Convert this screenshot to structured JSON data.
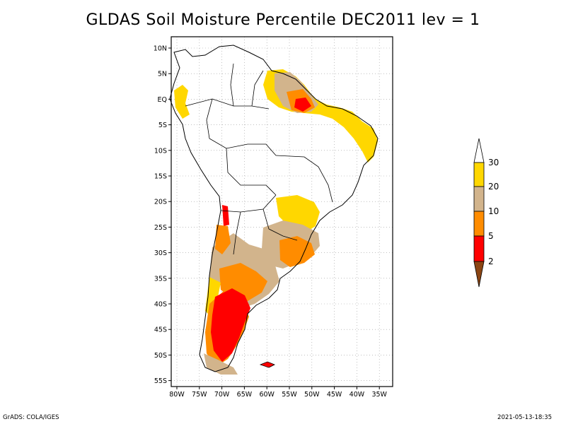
{
  "title": "GLDAS Soil Moisture Percentile DEC2011 lev = 1",
  "footer": {
    "left": "GrADS: COLA/IGES",
    "right": "2021-05-13-18:35"
  },
  "axes": {
    "lat_ticks": [
      "10N",
      "5N",
      "EQ",
      "5S",
      "10S",
      "15S",
      "20S",
      "25S",
      "30S",
      "35S",
      "40S",
      "45S",
      "50S",
      "55S"
    ],
    "lon_ticks": [
      "80W",
      "75W",
      "70W",
      "65W",
      "60W",
      "55W",
      "50W",
      "45W",
      "40W",
      "35W"
    ]
  },
  "colorbar": {
    "labels": [
      "2",
      "5",
      "10",
      "20",
      "30"
    ],
    "colors": {
      "lt2": "#8b4513",
      "p2_5": "#ff0000",
      "p5_10": "#ff8c00",
      "p10_20": "#d2b48c",
      "p20_30": "#ffd700",
      "gt30": "#ffffff"
    }
  }
}
